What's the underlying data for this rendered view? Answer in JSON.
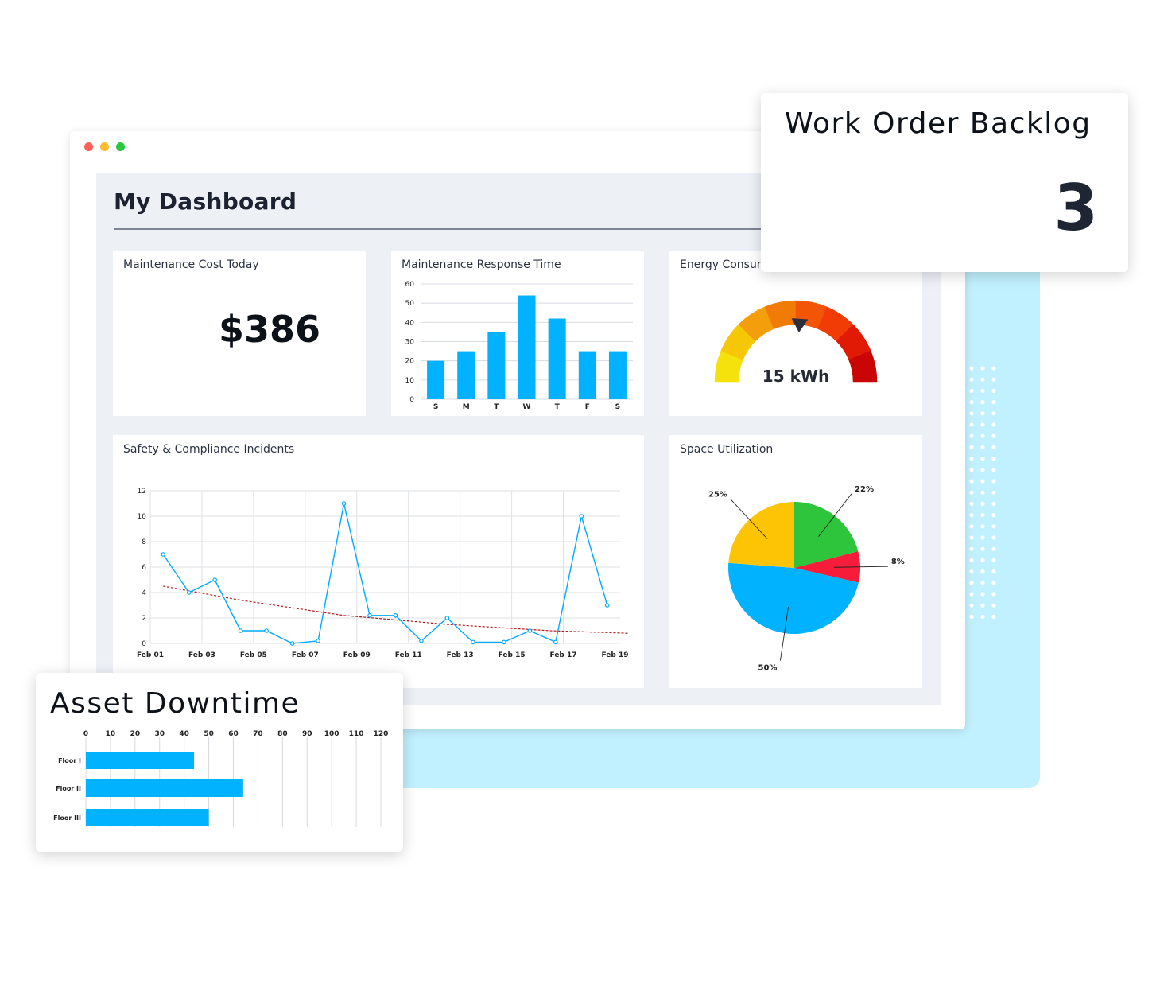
{
  "dashboard": {
    "title": "My Dashboard",
    "window_dots": [
      "#ff5f57",
      "#febc2e",
      "#28c840"
    ]
  },
  "maintenance_cost": {
    "title": "Maintenance Cost Today",
    "value": "$386"
  },
  "response_time": {
    "title": "Maintenance Response Time",
    "chart_data": {
      "type": "bar",
      "categories": [
        "S",
        "M",
        "T",
        "W",
        "T",
        "F",
        "S"
      ],
      "values": [
        20,
        25,
        35,
        54,
        42,
        25,
        25
      ],
      "ylim": [
        0,
        60
      ],
      "yticks": [
        0,
        10,
        20,
        30,
        40,
        50,
        60
      ],
      "color": "#00b2ff",
      "grid": true
    }
  },
  "energy": {
    "title": "Energy Consumption",
    "value": "15 kWh",
    "gauge_fraction": 0.52,
    "segment_colors": [
      "#f5e20c",
      "#f5c707",
      "#f59e0b",
      "#f07c05",
      "#f25505",
      "#f23c05",
      "#e01a05",
      "#c90505"
    ],
    "needle_color": "#2a2f3b"
  },
  "safety": {
    "title": "Safety & Compliance Incidents",
    "chart_data": {
      "type": "line",
      "x_labels": [
        "Feb 01",
        "Feb 03",
        "Feb 05",
        "Feb 07",
        "Feb 09",
        "Feb 11",
        "Feb 13",
        "Feb 15",
        "Feb 17",
        "Feb 19"
      ],
      "points": [
        [
          0.5,
          7
        ],
        [
          1.5,
          4
        ],
        [
          2.5,
          5
        ],
        [
          3.5,
          1
        ],
        [
          4.5,
          1
        ],
        [
          5.5,
          0
        ],
        [
          6.5,
          0.2
        ],
        [
          7.5,
          11
        ],
        [
          8.5,
          2.2
        ],
        [
          9.5,
          2.2
        ],
        [
          10.5,
          0.2
        ],
        [
          11.5,
          2
        ],
        [
          12.5,
          0.1
        ],
        [
          13.7,
          0.1
        ],
        [
          14.7,
          1
        ],
        [
          15.7,
          0.1
        ],
        [
          16.7,
          10
        ],
        [
          17.7,
          3
        ]
      ],
      "trend": [
        [
          0.5,
          4.5
        ],
        [
          3.5,
          3.4
        ],
        [
          7.5,
          2.2
        ],
        [
          11.5,
          1.5
        ],
        [
          15.5,
          1.0
        ],
        [
          18.5,
          0.8
        ]
      ],
      "xlim": [
        0,
        18.2
      ],
      "ylim": [
        0,
        12
      ],
      "yticks": [
        0,
        2,
        4,
        6,
        8,
        10,
        12
      ],
      "line_color": "#00aaff",
      "trend_color": "#b01818",
      "grid": true
    }
  },
  "space": {
    "title": "Space Utilization",
    "chart_data": {
      "type": "pie",
      "slices": [
        {
          "label": "22%",
          "value": 22,
          "color": "#2ec43b"
        },
        {
          "label": "8%",
          "value": 8,
          "color": "#f71d3a"
        },
        {
          "label": "50%",
          "value": 50,
          "color": "#00b2ff"
        },
        {
          "label": "25%",
          "value": 25,
          "color": "#fdc305"
        }
      ]
    }
  },
  "work_order": {
    "title": "Work Order Backlog",
    "value": "3"
  },
  "asset_downtime": {
    "title": "Asset Downtime",
    "chart_data": {
      "type": "bar",
      "orientation": "horizontal",
      "categories": [
        "Floor I",
        "Floor II",
        "Floor III"
      ],
      "values": [
        44,
        64,
        50
      ],
      "xlim": [
        0,
        120
      ],
      "xticks": [
        0,
        10,
        20,
        30,
        40,
        50,
        60,
        70,
        80,
        90,
        100,
        110,
        120
      ],
      "color": "#00b2ff",
      "grid": true
    }
  }
}
